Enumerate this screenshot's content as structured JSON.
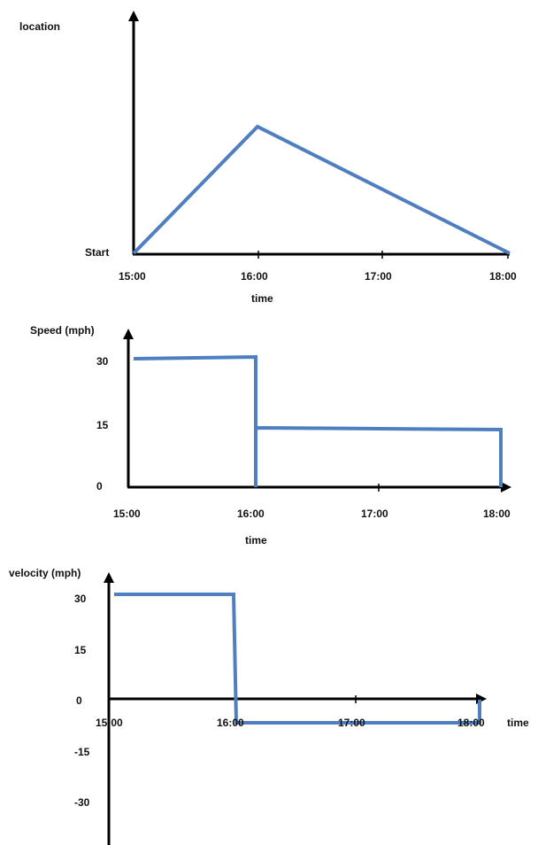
{
  "chart_data": [
    {
      "type": "line",
      "ylabel": "location",
      "xlabel": "time",
      "x_ticks": [
        "15:00",
        "16:00",
        "17:00",
        "18:00"
      ],
      "y_ticks": [
        "Start"
      ],
      "series": [
        {
          "x": [
            "15:00",
            "16:00",
            "18:00"
          ],
          "y": [
            0,
            1,
            0
          ]
        }
      ],
      "color": "#4f7fc0"
    },
    {
      "type": "line",
      "ylabel": "Speed (mph)",
      "xlabel": "time",
      "x_ticks": [
        "15:00",
        "16:00",
        "17:00",
        "18:00"
      ],
      "y_ticks": [
        "30",
        "15",
        "0"
      ],
      "ylim": [
        0,
        30
      ],
      "series": [
        {
          "x": [
            "15:00",
            "16:00",
            "16:00",
            "16:00",
            "18:00",
            "18:00"
          ],
          "y": [
            30,
            30,
            0,
            14,
            14,
            0
          ]
        }
      ],
      "color": "#4f7fc0"
    },
    {
      "type": "line",
      "ylabel": "velocity (mph)",
      "xlabel": "time",
      "x_ticks": [
        "15:00",
        "16:00",
        "17:00",
        "18:00"
      ],
      "y_ticks": [
        "30",
        "15",
        "0",
        "-15",
        "-30"
      ],
      "ylim": [
        -38,
        30
      ],
      "series": [
        {
          "x": [
            "15:00",
            "16:00",
            "16:00",
            "18:00",
            "18:00"
          ],
          "y": [
            30,
            30,
            -14,
            -14,
            0
          ]
        }
      ],
      "color": "#4f7fc0"
    }
  ]
}
